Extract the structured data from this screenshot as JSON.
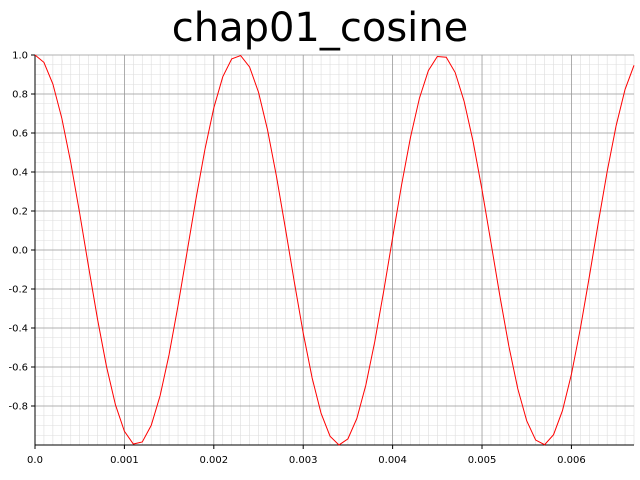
{
  "chart_data": {
    "type": "line",
    "title": "chap01_cosine",
    "xlabel": "",
    "ylabel": "",
    "xlim": [
      0.0,
      0.0067
    ],
    "ylim": [
      -1.0,
      1.0
    ],
    "x_ticks": [
      "0.0",
      "0.001",
      "0.002",
      "0.003",
      "0.004",
      "0.005",
      "0.006"
    ],
    "y_ticks": [
      "1.0",
      "0.8",
      "0.6",
      "0.4",
      "0.2",
      "0.0",
      "-0.2",
      "-0.4",
      "-0.6",
      "-0.8"
    ],
    "grid": true,
    "series": [
      {
        "color": "#ff0000",
        "function": "cos(2*pi*440*t)",
        "frequency_hz": 440,
        "amplitude": 1.0,
        "sample_interval": 0.0001,
        "x_start": 0.0,
        "x_end": 0.0067
      }
    ]
  }
}
